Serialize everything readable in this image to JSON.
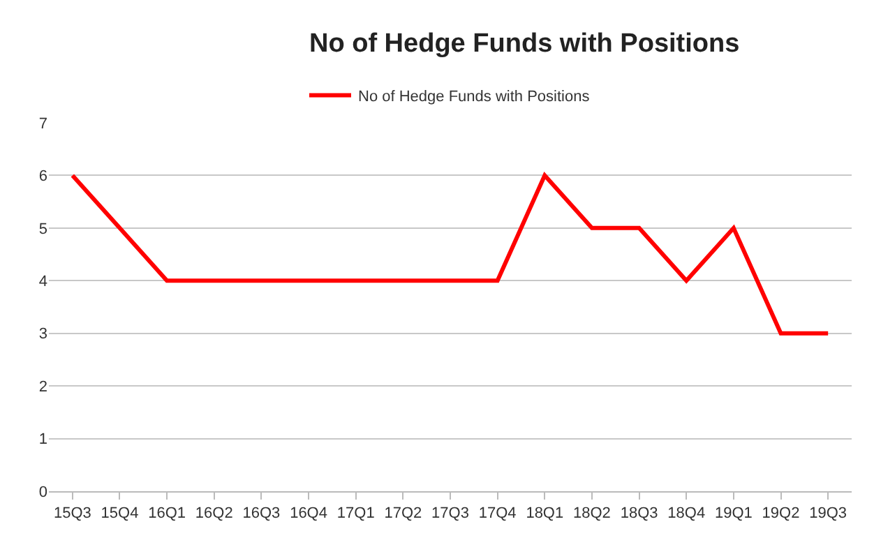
{
  "chart_data": {
    "type": "line",
    "title": "No of Hedge Funds with Positions",
    "categories": [
      "15Q3",
      "15Q4",
      "16Q1",
      "16Q2",
      "16Q3",
      "16Q4",
      "17Q1",
      "17Q2",
      "17Q3",
      "17Q4",
      "18Q1",
      "18Q2",
      "18Q3",
      "18Q4",
      "19Q1",
      "19Q2",
      "19Q3"
    ],
    "series": [
      {
        "name": "No of Hedge Funds with Positions",
        "color": "#ff0000",
        "values": [
          6,
          5,
          4,
          4,
          4,
          4,
          4,
          4,
          4,
          4,
          6,
          5,
          5,
          4,
          5,
          3,
          3
        ]
      }
    ],
    "ylim": [
      0,
      7
    ],
    "yticks": [
      0,
      1,
      2,
      3,
      4,
      5,
      6,
      7
    ],
    "grid": "y",
    "legend": "top",
    "marker": "none",
    "line_style": "solid"
  }
}
